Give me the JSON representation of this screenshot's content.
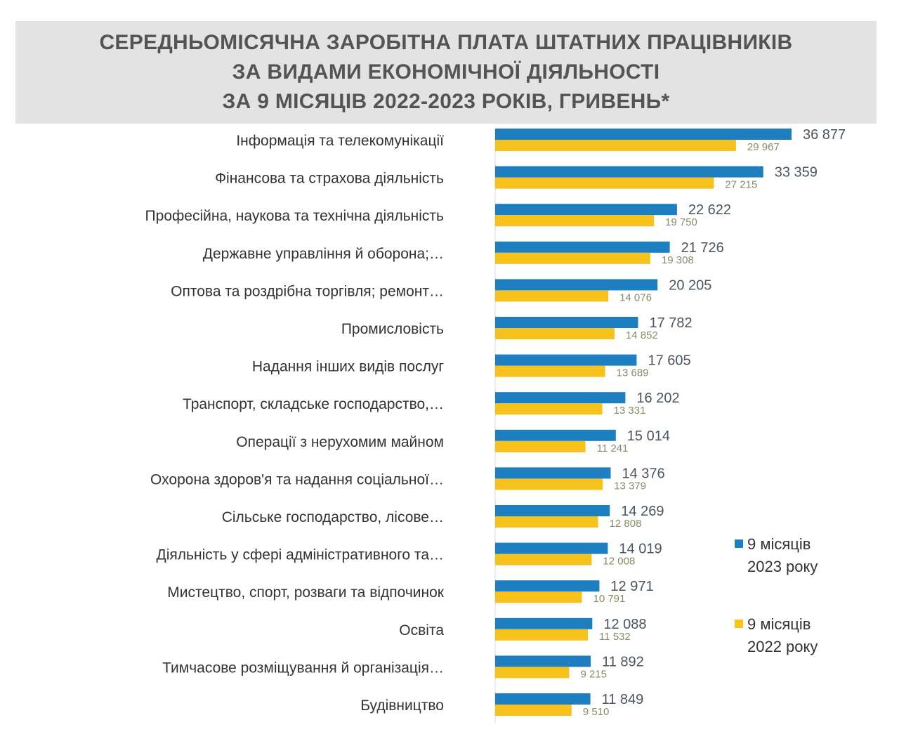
{
  "chart_data": {
    "type": "bar",
    "orientation": "horizontal",
    "title": [
      "СЕРЕДНЬОМІСЯЧНА ЗАРОБІТНА ПЛАТА ШТАТНИХ ПРАЦІВНИКІВ",
      "ЗА ВИДАМИ ЕКОНОМІЧНОЇ ДІЯЛЬНОСТІ",
      "ЗА 9 МІСЯЦІВ 2022-2023 РОКІВ, ГРИВЕНЬ*"
    ],
    "categories": [
      "Інформація та телекомунікації",
      "Фінансова та страхова діяльність",
      "Професійна, наукова та технічна діяльність",
      "Державне управління й оборона;…",
      "Оптова та роздрібна торгівля; ремонт…",
      "Промисловість",
      "Надання інших видів послуг",
      "Транспорт, складське господарство,…",
      "Операції з нерухомим майном",
      "Охорона здоров'я та надання соціальної…",
      "Сільське господарство, лісове…",
      "Діяльність у сфері адміністративного та…",
      "Мистецтво, спорт, розваги та відпочинок",
      "Освіта",
      "Тимчасове розміщування й організація…",
      "Будівництво"
    ],
    "series": [
      {
        "name": "9 місяців 2023 року",
        "legend_lines": [
          "9 місяців",
          "2023 року"
        ],
        "color": "#1e7fc0",
        "values": [
          36877,
          33359,
          22622,
          21726,
          20205,
          17782,
          17605,
          16202,
          15014,
          14376,
          14269,
          14019,
          12971,
          12088,
          11892,
          11849
        ],
        "labels": [
          "36 877",
          "33 359",
          "22 622",
          "21 726",
          "20 205",
          "17 782",
          "17 605",
          "16 202",
          "15 014",
          "14 376",
          "14 269",
          "14 019",
          "12 971",
          "12 088",
          "11 892",
          "11 849"
        ]
      },
      {
        "name": "9 місяців 2022 року",
        "legend_lines": [
          "9 місяців",
          "2022 року"
        ],
        "color": "#f7c21b",
        "values": [
          29967,
          27215,
          19750,
          19308,
          14076,
          14852,
          13689,
          13331,
          11241,
          13379,
          12808,
          12008,
          10791,
          11532,
          9215,
          9510
        ],
        "labels": [
          "29 967",
          "27 215",
          "19 750",
          "19 308",
          "14 076",
          "14 852",
          "13 689",
          "13 331",
          "11 241",
          "13 379",
          "12 808",
          "12 008",
          "10 791",
          "11 532",
          "9 215",
          "9 510"
        ]
      }
    ],
    "xlim": [
      0,
      36877
    ],
    "grid": false,
    "legend": "right"
  }
}
